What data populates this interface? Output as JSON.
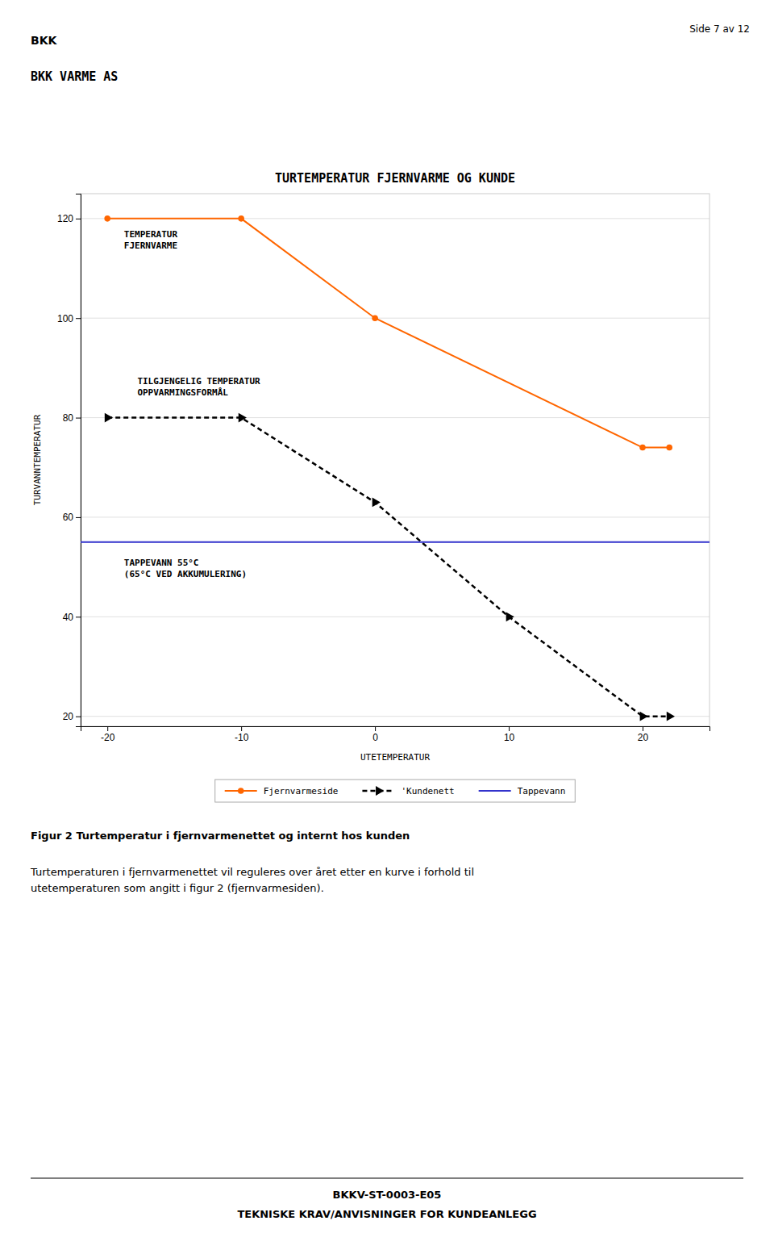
{
  "page_header": "Side 7 av 12",
  "logo": "BKK",
  "company_name": "BKK VARME AS",
  "caption_title": "Figur 2 Turtemperatur i fjernvarmenettet og internt hos kunden",
  "caption_text": [
    "Turtemperaturen i fjernvarmenettet vil reguleres over året etter en kurve i forhold til",
    "utetemperaturen som angitt i figur 2 (fjernvarmesiden)."
  ],
  "footer": [
    "BKKV-ST-0003-E05",
    "TEKNISKE KRAV/ANVISNINGER FOR KUNDEANLEGG"
  ],
  "chart_data": {
    "type": "line",
    "title": "TURTEMPERATUR FJERNVARME OG KUNDE",
    "xlabel": "UTETEMPERATUR",
    "ylabel": "TURVANNTEMPERATUR",
    "xlim": [
      -22,
      25
    ],
    "ylim": [
      18,
      125
    ],
    "xticks": [
      -20,
      -10,
      0,
      10,
      20
    ],
    "yticks": [
      20,
      40,
      60,
      80,
      100,
      120
    ],
    "grid": true,
    "legend": "bottom",
    "series": [
      {
        "name": "Fjernvarmeside",
        "color": "#ff6600",
        "marker": "circle",
        "line_style": "solid",
        "x": [
          -20,
          -10,
          0,
          20,
          22
        ],
        "values": [
          120,
          120,
          100,
          74,
          74
        ]
      },
      {
        "name": "'Kundenett",
        "color": "#000000",
        "marker": "triangle-right",
        "line_style": "dashed",
        "x": [
          -20,
          -10,
          0,
          10,
          20,
          22
        ],
        "values": [
          80,
          80,
          63,
          40,
          20,
          20
        ]
      },
      {
        "name": "Tappevann",
        "color": "#3333cc",
        "marker": "none",
        "line_style": "solid",
        "x": [
          -22,
          25
        ],
        "values": [
          55,
          55
        ]
      }
    ],
    "annotations": [
      {
        "text": [
          "TEMPERATUR",
          "FJERNVARME"
        ],
        "x": -19,
        "y": 118
      },
      {
        "text": [
          "TILGJENGELIG TEMPERATUR",
          "OPPVARMINGSFORMÅL"
        ],
        "x": -18,
        "y": 84
      },
      {
        "text": [
          "TAPPEVANN 55°C",
          "(65°C VED AKKUMULERING)"
        ],
        "x": -19,
        "y": 52
      }
    ]
  }
}
